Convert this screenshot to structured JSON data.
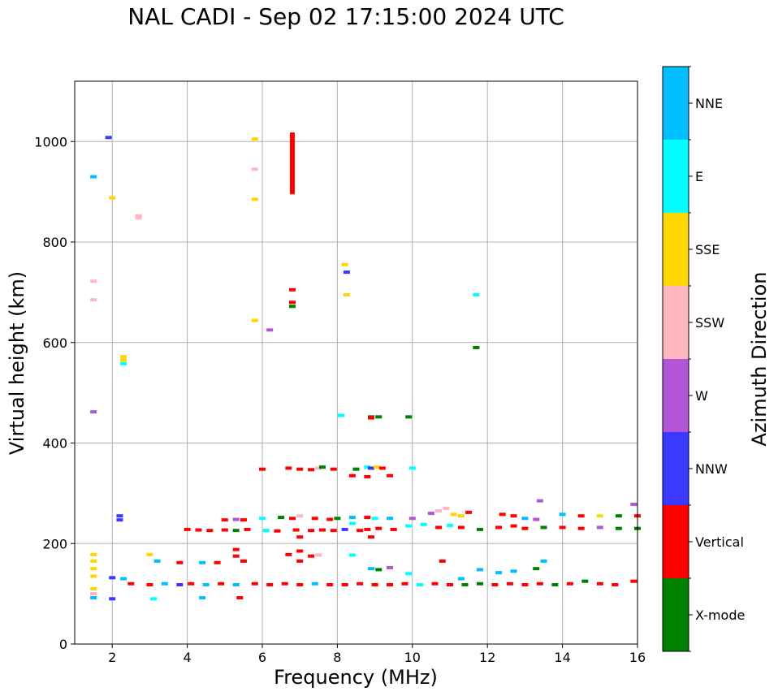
{
  "title": "NAL CADI - Sep 02 17:15:00 2024 UTC",
  "chart_data": {
    "type": "scatter",
    "title": "NAL CADI - Sep 02 17:15:00 2024 UTC",
    "xlabel": "Frequency (MHz)",
    "ylabel": "Virtual height (km)",
    "xlim": [
      1,
      16
    ],
    "ylim": [
      0,
      1120
    ],
    "xticks": [
      2,
      4,
      6,
      8,
      10,
      12,
      14,
      16
    ],
    "yticks": [
      0,
      200,
      400,
      600,
      800,
      1000
    ],
    "grid": true,
    "colorbar": {
      "label": "Azimuth Direction",
      "position": "right",
      "categories": [
        {
          "name": "X-mode",
          "color": "#008000"
        },
        {
          "name": "Vertical",
          "color": "#ff0000"
        },
        {
          "name": "NNW",
          "color": "#3a3aff"
        },
        {
          "name": "W",
          "color": "#b157d6"
        },
        {
          "name": "SSW",
          "color": "#ffb6c1"
        },
        {
          "name": "SSE",
          "color": "#ffd700"
        },
        {
          "name": "E",
          "color": "#00ffff"
        },
        {
          "name": "NNE",
          "color": "#00bfff"
        }
      ]
    },
    "points": [
      [
        1.5,
        930,
        "NNE"
      ],
      [
        1.9,
        1008,
        "NNW"
      ],
      [
        2.0,
        888,
        "SSE"
      ],
      [
        2.7,
        852,
        "SSW"
      ],
      [
        2.7,
        848,
        "SSW"
      ],
      [
        5.8,
        1005,
        "SSE"
      ],
      [
        5.8,
        945,
        "SSW"
      ],
      [
        5.8,
        885,
        "SSE"
      ],
      [
        5.8,
        644,
        "SSE"
      ],
      [
        6.2,
        625,
        "W"
      ],
      [
        6.8,
        705,
        "Vertical"
      ],
      [
        6.8,
        680,
        "Vertical"
      ],
      [
        6.8,
        672,
        "X-mode"
      ],
      [
        1.5,
        722,
        "SSW"
      ],
      [
        1.5,
        685,
        "SSW"
      ],
      [
        2.3,
        572,
        "SSE"
      ],
      [
        2.3,
        565,
        "SSE"
      ],
      [
        2.3,
        558,
        "E"
      ],
      [
        1.5,
        462,
        "W"
      ],
      [
        8.2,
        755,
        "SSE"
      ],
      [
        8.25,
        740,
        "NNW"
      ],
      [
        8.25,
        695,
        "SSE"
      ],
      [
        11.7,
        695,
        "E"
      ],
      [
        11.7,
        590,
        "X-mode"
      ],
      [
        8.1,
        455,
        "E"
      ],
      [
        8.9,
        452,
        "X-mode"
      ],
      [
        8.9,
        450,
        "Vertical"
      ],
      [
        9.1,
        452,
        "X-mode"
      ],
      [
        9.9,
        452,
        "X-mode"
      ],
      [
        6.0,
        348,
        "Vertical"
      ],
      [
        6.7,
        350,
        "Vertical"
      ],
      [
        7.0,
        348,
        "Vertical"
      ],
      [
        7.3,
        347,
        "Vertical"
      ],
      [
        7.5,
        350,
        "SSW"
      ],
      [
        7.6,
        352,
        "X-mode"
      ],
      [
        7.9,
        348,
        "Vertical"
      ],
      [
        8.5,
        348,
        "X-mode"
      ],
      [
        8.8,
        352,
        "E"
      ],
      [
        8.9,
        350,
        "NNW"
      ],
      [
        9.05,
        352,
        "SSE"
      ],
      [
        9.2,
        350,
        "Vertical"
      ],
      [
        10.0,
        350,
        "E"
      ],
      [
        8.4,
        335,
        "Vertical"
      ],
      [
        8.8,
        333,
        "Vertical"
      ],
      [
        9.4,
        335,
        "Vertical"
      ],
      [
        2.2,
        255,
        "NNW"
      ],
      [
        2.2,
        247,
        "NNW"
      ],
      [
        5.0,
        247,
        "Vertical"
      ],
      [
        5.3,
        248,
        "W"
      ],
      [
        5.5,
        247,
        "Vertical"
      ],
      [
        6.0,
        250,
        "E"
      ],
      [
        6.5,
        252,
        "X-mode"
      ],
      [
        6.8,
        250,
        "Vertical"
      ],
      [
        7.0,
        255,
        "SSW"
      ],
      [
        7.4,
        250,
        "Vertical"
      ],
      [
        7.8,
        248,
        "Vertical"
      ],
      [
        8.0,
        250,
        "X-mode"
      ],
      [
        8.4,
        252,
        "NNE"
      ],
      [
        8.8,
        252,
        "Vertical"
      ],
      [
        9.0,
        250,
        "E"
      ],
      [
        9.4,
        250,
        "NNE"
      ],
      [
        10.0,
        250,
        "W"
      ],
      [
        10.5,
        260,
        "W"
      ],
      [
        10.7,
        265,
        "SSW"
      ],
      [
        10.9,
        270,
        "SSW"
      ],
      [
        11.1,
        258,
        "SSE"
      ],
      [
        11.3,
        255,
        "SSE"
      ],
      [
        11.5,
        262,
        "Vertical"
      ],
      [
        12.4,
        258,
        "Vertical"
      ],
      [
        12.7,
        255,
        "Vertical"
      ],
      [
        13.0,
        250,
        "NNE"
      ],
      [
        13.3,
        248,
        "W"
      ],
      [
        13.4,
        285,
        "W"
      ],
      [
        14.0,
        258,
        "NNE"
      ],
      [
        14.5,
        255,
        "Vertical"
      ],
      [
        15.0,
        255,
        "SSE"
      ],
      [
        15.5,
        255,
        "X-mode"
      ],
      [
        15.9,
        278,
        "W"
      ],
      [
        16.0,
        255,
        "Vertical"
      ],
      [
        4.0,
        228,
        "Vertical"
      ],
      [
        4.3,
        227,
        "Vertical"
      ],
      [
        4.6,
        226,
        "Vertical"
      ],
      [
        5.0,
        227,
        "Vertical"
      ],
      [
        5.3,
        226,
        "X-mode"
      ],
      [
        5.6,
        228,
        "Vertical"
      ],
      [
        6.1,
        226,
        "E"
      ],
      [
        6.4,
        225,
        "Vertical"
      ],
      [
        6.9,
        227,
        "Vertical"
      ],
      [
        7.3,
        226,
        "Vertical"
      ],
      [
        7.6,
        227,
        "Vertical"
      ],
      [
        7.9,
        226,
        "Vertical"
      ],
      [
        8.2,
        228,
        "NNW"
      ],
      [
        8.4,
        240,
        "E"
      ],
      [
        8.6,
        226,
        "Vertical"
      ],
      [
        8.8,
        228,
        "Vertical"
      ],
      [
        9.1,
        230,
        "Vertical"
      ],
      [
        9.5,
        228,
        "Vertical"
      ],
      [
        9.9,
        235,
        "E"
      ],
      [
        10.3,
        238,
        "E"
      ],
      [
        10.7,
        232,
        "Vertical"
      ],
      [
        11.0,
        236,
        "E"
      ],
      [
        11.3,
        232,
        "Vertical"
      ],
      [
        11.8,
        228,
        "X-mode"
      ],
      [
        12.3,
        232,
        "Vertical"
      ],
      [
        12.7,
        235,
        "Vertical"
      ],
      [
        13.0,
        230,
        "Vertical"
      ],
      [
        13.5,
        232,
        "X-mode"
      ],
      [
        14.0,
        232,
        "Vertical"
      ],
      [
        14.5,
        230,
        "Vertical"
      ],
      [
        15.0,
        232,
        "W"
      ],
      [
        15.5,
        230,
        "X-mode"
      ],
      [
        16.0,
        230,
        "X-mode"
      ],
      [
        8.9,
        213,
        "Vertical"
      ],
      [
        7.0,
        213,
        "Vertical"
      ],
      [
        1.5,
        178,
        "SSE"
      ],
      [
        1.5,
        165,
        "SSE"
      ],
      [
        1.5,
        150,
        "SSE"
      ],
      [
        1.5,
        135,
        "SSE"
      ],
      [
        2.0,
        132,
        "NNW"
      ],
      [
        2.3,
        130,
        "NNE"
      ],
      [
        3.0,
        178,
        "SSE"
      ],
      [
        3.2,
        165,
        "NNE"
      ],
      [
        3.8,
        162,
        "Vertical"
      ],
      [
        4.4,
        162,
        "NNE"
      ],
      [
        4.8,
        162,
        "Vertical"
      ],
      [
        5.3,
        188,
        "Vertical"
      ],
      [
        5.3,
        175,
        "Vertical"
      ],
      [
        5.5,
        165,
        "Vertical"
      ],
      [
        6.7,
        178,
        "Vertical"
      ],
      [
        7.0,
        185,
        "Vertical"
      ],
      [
        7.0,
        165,
        "Vertical"
      ],
      [
        7.3,
        175,
        "Vertical"
      ],
      [
        7.5,
        177,
        "SSW"
      ],
      [
        8.4,
        177,
        "E"
      ],
      [
        8.9,
        150,
        "NNE"
      ],
      [
        9.1,
        148,
        "X-mode"
      ],
      [
        9.4,
        152,
        "W"
      ],
      [
        9.9,
        140,
        "E"
      ],
      [
        10.8,
        165,
        "Vertical"
      ],
      [
        11.3,
        130,
        "NNE"
      ],
      [
        11.8,
        148,
        "NNE"
      ],
      [
        12.3,
        142,
        "NNE"
      ],
      [
        12.7,
        145,
        "NNE"
      ],
      [
        13.3,
        150,
        "X-mode"
      ],
      [
        13.5,
        165,
        "NNE"
      ],
      [
        1.5,
        110,
        "SSE"
      ],
      [
        1.5,
        100,
        "SSW"
      ],
      [
        1.5,
        92,
        "NNE"
      ],
      [
        2.0,
        90,
        "NNW"
      ],
      [
        3.1,
        90,
        "E"
      ],
      [
        4.4,
        92,
        "NNE"
      ],
      [
        5.4,
        92,
        "Vertical"
      ],
      [
        2.5,
        120,
        "Vertical"
      ],
      [
        3.0,
        118,
        "Vertical"
      ],
      [
        3.4,
        120,
        "NNE"
      ],
      [
        3.8,
        118,
        "NNW"
      ],
      [
        4.1,
        120,
        "Vertical"
      ],
      [
        4.5,
        118,
        "NNE"
      ],
      [
        4.9,
        120,
        "Vertical"
      ],
      [
        5.3,
        118,
        "NNE"
      ],
      [
        5.8,
        120,
        "Vertical"
      ],
      [
        6.2,
        118,
        "Vertical"
      ],
      [
        6.6,
        120,
        "Vertical"
      ],
      [
        7.0,
        118,
        "Vertical"
      ],
      [
        7.4,
        120,
        "NNE"
      ],
      [
        7.8,
        118,
        "Vertical"
      ],
      [
        8.2,
        118,
        "Vertical"
      ],
      [
        8.6,
        120,
        "Vertical"
      ],
      [
        9.0,
        118,
        "Vertical"
      ],
      [
        9.4,
        118,
        "Vertical"
      ],
      [
        9.8,
        120,
        "Vertical"
      ],
      [
        10.2,
        118,
        "E"
      ],
      [
        10.6,
        120,
        "Vertical"
      ],
      [
        11.0,
        118,
        "Vertical"
      ],
      [
        11.4,
        118,
        "X-mode"
      ],
      [
        11.8,
        120,
        "X-mode"
      ],
      [
        12.2,
        118,
        "Vertical"
      ],
      [
        12.6,
        120,
        "Vertical"
      ],
      [
        13.0,
        118,
        "Vertical"
      ],
      [
        13.4,
        120,
        "Vertical"
      ],
      [
        13.8,
        118,
        "X-mode"
      ],
      [
        14.2,
        120,
        "Vertical"
      ],
      [
        14.6,
        125,
        "X-mode"
      ],
      [
        15.0,
        120,
        "Vertical"
      ],
      [
        15.4,
        118,
        "Vertical"
      ],
      [
        15.9,
        125,
        "Vertical"
      ]
    ]
  }
}
